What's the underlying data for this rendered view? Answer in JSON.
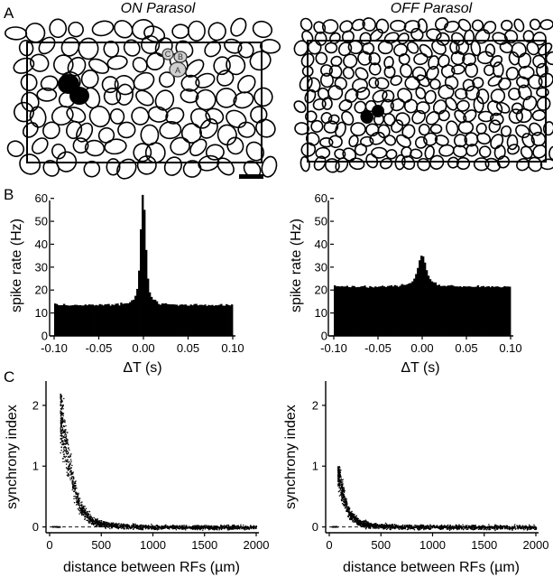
{
  "panel_letters": {
    "a": "A",
    "b": "B",
    "c": "C"
  },
  "mosaics": [
    {
      "title": "ON Parasol",
      "highlight_labels": [
        "A",
        "B",
        "C"
      ],
      "has_scale_bar": true
    },
    {
      "title": "OFF Parasol",
      "highlight_labels": [],
      "has_scale_bar": false
    }
  ],
  "chart_data": [
    {
      "panel": "B",
      "cell_type": "ON Parasol",
      "type": "bar",
      "title": "",
      "xlabel": "ΔT (s)",
      "ylabel": "spike rate (Hz)",
      "xlim": [
        -0.1,
        0.1
      ],
      "ylim": [
        0,
        65
      ],
      "xticks": [
        -0.1,
        -0.05,
        0.0,
        0.05,
        0.1
      ],
      "xtick_labels": [
        "-0.10",
        "-0.05",
        "0.00",
        "0.05",
        "0.10"
      ],
      "yticks": [
        0,
        10,
        20,
        30,
        40,
        50,
        60
      ],
      "ytick_labels": [
        "0",
        "10",
        "20",
        "30",
        "40",
        "50",
        "60"
      ],
      "baseline_rate": 13.5,
      "bin_width": 0.002,
      "peak": {
        "x": 0.0,
        "y": 65
      },
      "profile": [
        {
          "x": -0.1,
          "y": 13.5
        },
        {
          "x": -0.05,
          "y": 13.5
        },
        {
          "x": -0.02,
          "y": 14
        },
        {
          "x": -0.01,
          "y": 16
        },
        {
          "x": -0.006,
          "y": 22
        },
        {
          "x": -0.004,
          "y": 35
        },
        {
          "x": -0.002,
          "y": 58
        },
        {
          "x": 0.0,
          "y": 65
        },
        {
          "x": 0.002,
          "y": 45
        },
        {
          "x": 0.004,
          "y": 30
        },
        {
          "x": 0.006,
          "y": 20
        },
        {
          "x": 0.01,
          "y": 16
        },
        {
          "x": 0.02,
          "y": 14
        },
        {
          "x": 0.05,
          "y": 13.5
        },
        {
          "x": 0.1,
          "y": 13.5
        }
      ],
      "grid": false
    },
    {
      "panel": "B",
      "cell_type": "OFF Parasol",
      "type": "bar",
      "title": "",
      "xlabel": "ΔT (s)",
      "ylabel": "spike rate (Hz)",
      "xlim": [
        -0.1,
        0.1
      ],
      "ylim": [
        0,
        65
      ],
      "xticks": [
        -0.1,
        -0.05,
        0.0,
        0.05,
        0.1
      ],
      "xtick_labels": [
        "-0.10",
        "-0.05",
        "0.00",
        "0.05",
        "0.10"
      ],
      "yticks": [
        0,
        10,
        20,
        30,
        40,
        50,
        60
      ],
      "ytick_labels": [
        "0",
        "10",
        "20",
        "30",
        "40",
        "50",
        "60"
      ],
      "baseline_rate": 21.5,
      "bin_width": 0.002,
      "peak": {
        "x": 0.0,
        "y": 36
      },
      "profile": [
        {
          "x": -0.1,
          "y": 21.5
        },
        {
          "x": -0.05,
          "y": 21.5
        },
        {
          "x": -0.02,
          "y": 22
        },
        {
          "x": -0.01,
          "y": 24
        },
        {
          "x": -0.006,
          "y": 28
        },
        {
          "x": -0.003,
          "y": 33
        },
        {
          "x": 0.0,
          "y": 36
        },
        {
          "x": 0.003,
          "y": 32
        },
        {
          "x": 0.006,
          "y": 27
        },
        {
          "x": 0.01,
          "y": 24
        },
        {
          "x": 0.02,
          "y": 22
        },
        {
          "x": 0.05,
          "y": 21.5
        },
        {
          "x": 0.1,
          "y": 21.5
        }
      ],
      "grid": false
    },
    {
      "panel": "C",
      "cell_type": "ON Parasol",
      "type": "scatter",
      "title": "",
      "xlabel": "distance between RFs (µm)",
      "ylabel": "synchrony index",
      "xlim": [
        0,
        2000
      ],
      "ylim": [
        -0.2,
        2.4
      ],
      "xticks": [
        0,
        500,
        1000,
        1500,
        2000
      ],
      "xtick_labels": [
        "0",
        "500",
        "1000",
        "1500",
        "2000"
      ],
      "yticks": [
        0,
        1,
        2
      ],
      "ytick_labels": [
        "0",
        "1",
        "2"
      ],
      "reference_line_y": 0,
      "trend": [
        {
          "x": 80,
          "y": 0.0
        },
        {
          "x": 100,
          "y": 1.9
        },
        {
          "x": 150,
          "y": 1.35
        },
        {
          "x": 200,
          "y": 0.9
        },
        {
          "x": 250,
          "y": 0.55
        },
        {
          "x": 300,
          "y": 0.32
        },
        {
          "x": 400,
          "y": 0.12
        },
        {
          "x": 500,
          "y": 0.05
        },
        {
          "x": 700,
          "y": 0.02
        },
        {
          "x": 1000,
          "y": 0.0
        },
        {
          "x": 1500,
          "y": 0.0
        },
        {
          "x": 2000,
          "y": 0.0
        }
      ],
      "max_value": 2.2,
      "grid": false
    },
    {
      "panel": "C",
      "cell_type": "OFF Parasol",
      "type": "scatter",
      "title": "",
      "xlabel": "distance between RFs (µm)",
      "ylabel": "synchrony index",
      "xlim": [
        0,
        2000
      ],
      "ylim": [
        -0.2,
        2.4
      ],
      "xticks": [
        0,
        500,
        1000,
        1500,
        2000
      ],
      "xtick_labels": [
        "0",
        "500",
        "1000",
        "1500",
        "2000"
      ],
      "yticks": [
        0,
        1,
        2
      ],
      "ytick_labels": [
        "0",
        "1",
        "2"
      ],
      "reference_line_y": 0,
      "trend": [
        {
          "x": 70,
          "y": 0.0
        },
        {
          "x": 80,
          "y": 0.95
        },
        {
          "x": 120,
          "y": 0.6
        },
        {
          "x": 160,
          "y": 0.35
        },
        {
          "x": 200,
          "y": 0.2
        },
        {
          "x": 300,
          "y": 0.07
        },
        {
          "x": 400,
          "y": 0.03
        },
        {
          "x": 600,
          "y": 0.01
        },
        {
          "x": 1000,
          "y": 0.0
        },
        {
          "x": 1500,
          "y": 0.0
        },
        {
          "x": 2000,
          "y": 0.0
        }
      ],
      "max_value": 1.0,
      "grid": false
    }
  ]
}
